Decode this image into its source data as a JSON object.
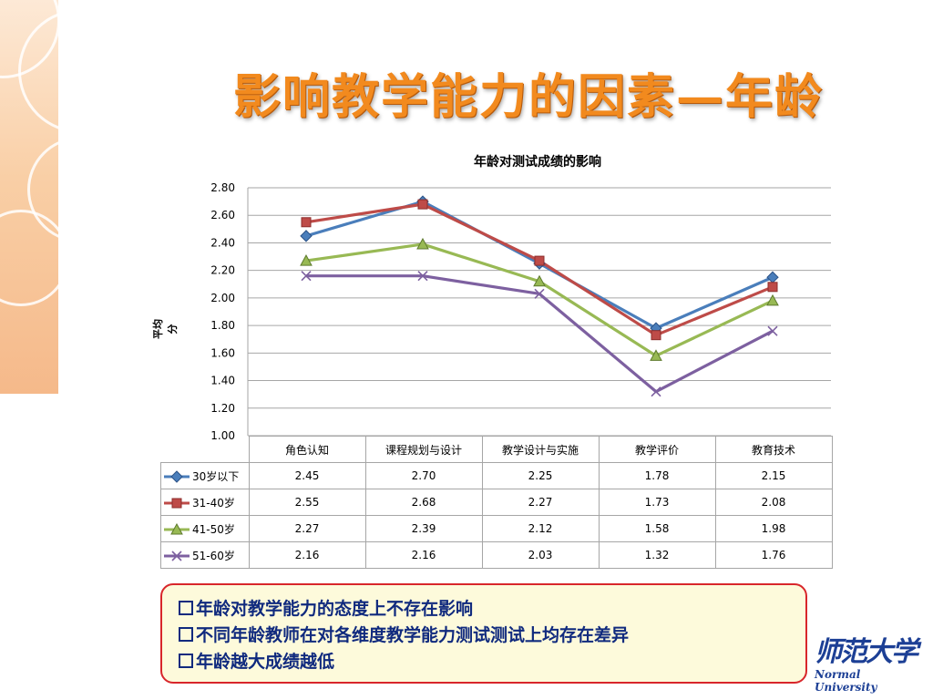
{
  "slide": {
    "title": "影响教学能力的因素—年龄"
  },
  "chart_data": {
    "type": "line",
    "title": "年龄对测试成绩的影响",
    "ylabel": "平均分",
    "xlabel": "",
    "ylim": [
      1.0,
      2.8
    ],
    "yticks": [
      "2.80",
      "2.60",
      "2.40",
      "2.20",
      "2.00",
      "1.80",
      "1.60",
      "1.40",
      "1.20",
      "1.00"
    ],
    "grid": true,
    "categories": [
      "角色认知",
      "课程规划与设计",
      "教学设计与实施",
      "教学评价",
      "教育技术"
    ],
    "series": [
      {
        "name": "30岁以下",
        "values": [
          2.45,
          2.7,
          2.25,
          1.78,
          2.15
        ],
        "labels": [
          "2.45",
          "2.70",
          "2.25",
          "1.78",
          "2.15"
        ],
        "color": "#4a7ebb",
        "marker": "diamond"
      },
      {
        "name": "31-40岁",
        "values": [
          2.55,
          2.68,
          2.27,
          1.73,
          2.08
        ],
        "labels": [
          "2.55",
          "2.68",
          "2.27",
          "1.73",
          "2.08"
        ],
        "color": "#be4b48",
        "marker": "square"
      },
      {
        "name": "41-50岁",
        "values": [
          2.27,
          2.39,
          2.12,
          1.58,
          1.98
        ],
        "labels": [
          "2.27",
          "2.39",
          "2.12",
          "1.58",
          "1.98"
        ],
        "color": "#98b954",
        "marker": "triangle"
      },
      {
        "name": "51-60岁",
        "values": [
          2.16,
          2.16,
          2.03,
          1.32,
          1.76
        ],
        "labels": [
          "2.16",
          "2.16",
          "2.03",
          "1.32",
          "1.76"
        ],
        "color": "#7d60a0",
        "marker": "x"
      }
    ]
  },
  "notes": [
    "年龄对教学能力的态度上不存在影响",
    "不同年龄教师在对各维度教学能力测试测试上均存在差异",
    "年龄越大成绩越低"
  ],
  "logo": {
    "zh": "师范大学",
    "en": "Normal University"
  }
}
